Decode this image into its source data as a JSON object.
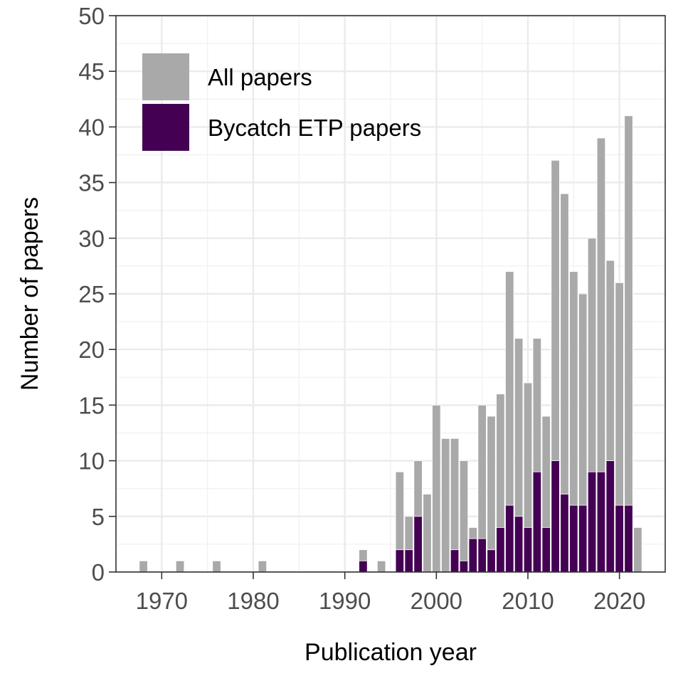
{
  "chart_data": {
    "type": "bar",
    "stacking": "overlaid",
    "xlabel": "Publication year",
    "ylabel": "Number of papers",
    "xlim": [
      1965,
      2025
    ],
    "ylim": [
      0,
      50
    ],
    "x_ticks": [
      1970,
      1980,
      1990,
      2000,
      2010,
      2020
    ],
    "y_ticks": [
      0,
      5,
      10,
      15,
      20,
      25,
      30,
      35,
      40,
      45,
      50
    ],
    "grid": true,
    "legend_position": "top-left",
    "series": [
      {
        "name": "All papers",
        "color": "#a9a9a9",
        "x": [
          1968,
          1972,
          1976,
          1981,
          1992,
          1994,
          1996,
          1997,
          1998,
          1999,
          2000,
          2001,
          2002,
          2003,
          2004,
          2005,
          2006,
          2007,
          2008,
          2009,
          2010,
          2011,
          2012,
          2013,
          2014,
          2015,
          2016,
          2017,
          2018,
          2019,
          2020,
          2021,
          2022
        ],
        "values": [
          1,
          1,
          1,
          1,
          2,
          1,
          9,
          5,
          10,
          7,
          15,
          12,
          12,
          10,
          4,
          15,
          14,
          16,
          27,
          21,
          17,
          21,
          14,
          37,
          34,
          27,
          25,
          30,
          39,
          28,
          26,
          41,
          4
        ]
      },
      {
        "name": "Bycatch ETP papers",
        "color": "#440154",
        "x": [
          1992,
          1996,
          1997,
          1998,
          2002,
          2003,
          2004,
          2005,
          2006,
          2007,
          2008,
          2009,
          2010,
          2011,
          2012,
          2013,
          2014,
          2015,
          2016,
          2017,
          2018,
          2019,
          2020,
          2021
        ],
        "values": [
          1,
          2,
          2,
          5,
          2,
          1,
          3,
          3,
          2,
          4,
          6,
          5,
          4,
          9,
          4,
          10,
          7,
          6,
          6,
          9,
          9,
          10,
          6,
          6
        ]
      }
    ]
  }
}
